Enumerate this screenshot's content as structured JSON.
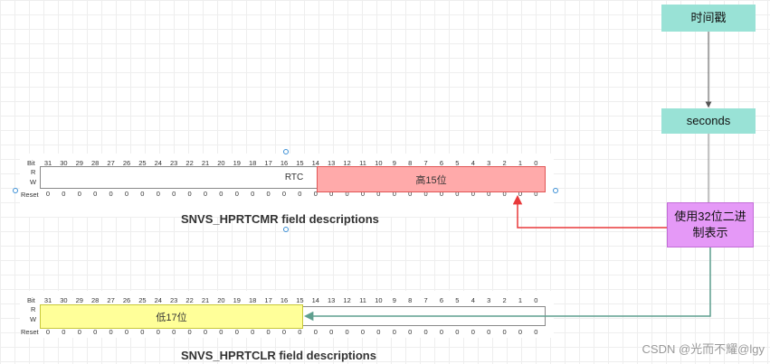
{
  "register1": {
    "row_bit": "Bit",
    "row_r": "R",
    "row_w": "W",
    "row_reset": "Reset",
    "bits": [
      "31",
      "30",
      "29",
      "28",
      "27",
      "26",
      "25",
      "24",
      "23",
      "22",
      "21",
      "20",
      "19",
      "18",
      "17",
      "16",
      "15",
      "14",
      "13",
      "12",
      "11",
      "10",
      "9",
      "8",
      "7",
      "6",
      "5",
      "4",
      "3",
      "2",
      "1",
      "0"
    ],
    "resets": [
      "0",
      "0",
      "0",
      "0",
      "0",
      "0",
      "0",
      "0",
      "0",
      "0",
      "0",
      "0",
      "0",
      "0",
      "0",
      "0",
      "0",
      "0",
      "0",
      "0",
      "0",
      "0",
      "0",
      "0",
      "0",
      "0",
      "0",
      "0",
      "0",
      "0",
      "0",
      "0"
    ],
    "field_label": "RTC",
    "highlight_label": "高15位",
    "caption": "SNVS_HPRTCMR field descriptions"
  },
  "register2": {
    "row_bit": "Bit",
    "row_r": "R",
    "row_w": "W",
    "row_reset": "Reset",
    "bits": [
      "31",
      "30",
      "29",
      "28",
      "27",
      "26",
      "25",
      "24",
      "23",
      "22",
      "21",
      "20",
      "19",
      "18",
      "17",
      "16",
      "15",
      "14",
      "13",
      "12",
      "11",
      "10",
      "9",
      "8",
      "7",
      "6",
      "5",
      "4",
      "3",
      "2",
      "1",
      "0"
    ],
    "resets": [
      "0",
      "0",
      "0",
      "0",
      "0",
      "0",
      "0",
      "0",
      "0",
      "0",
      "0",
      "0",
      "0",
      "0",
      "0",
      "0",
      "0",
      "0",
      "0",
      "0",
      "0",
      "0",
      "0",
      "0",
      "0",
      "0",
      "0",
      "0",
      "0",
      "0",
      "0",
      "0"
    ],
    "highlight_label": "低17位",
    "caption": "SNVS_HPRTCLR field descriptions"
  },
  "flow": {
    "timestamp_label": "时间戳",
    "seconds_label": "seconds",
    "binary_label": "使用32位二进制表示"
  },
  "colors": {
    "high_bits_fill": "#ffaaaa",
    "high_bits_border": "#e05555",
    "low_bits_fill": "#ffff99",
    "low_bits_border": "#c8c83a",
    "flow_box_fill": "#99e2d6",
    "binary_box_fill": "#e599f7",
    "binary_box_border": "#c26cd6",
    "red_arrow": "#e8393a",
    "teal_arrow": "#5f9f8f"
  },
  "watermark": "CSDN @光而不耀@lgy"
}
